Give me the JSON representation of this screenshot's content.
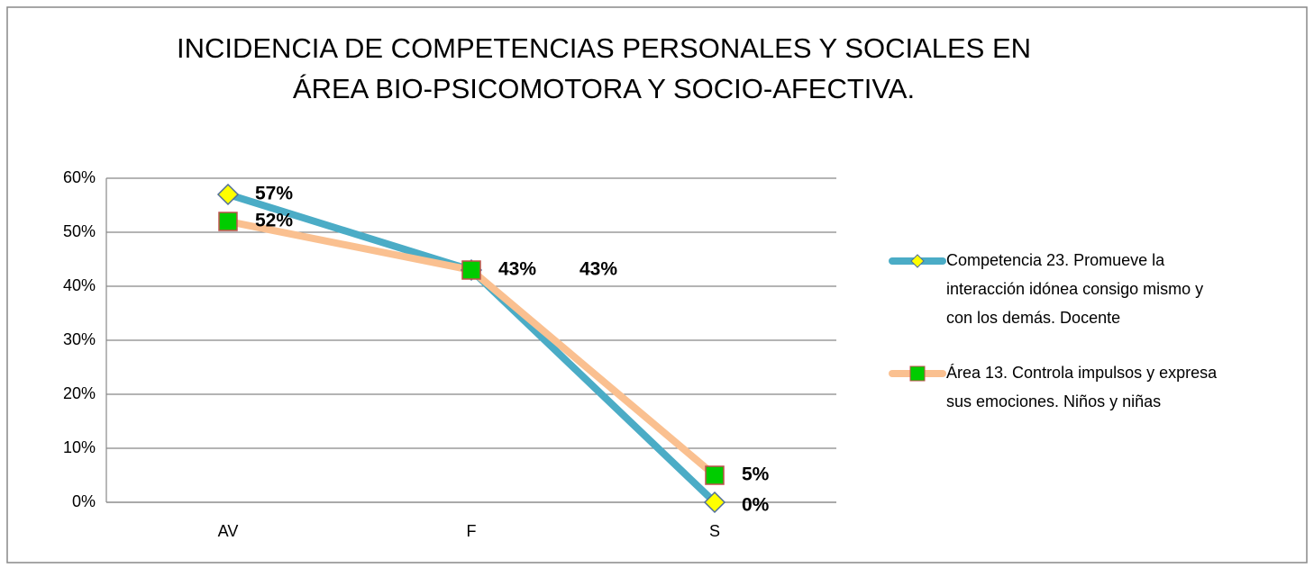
{
  "chart_data": {
    "type": "line",
    "title": [
      "INCIDENCIA DE COMPETENCIAS PERSONALES Y SOCIALES EN",
      "ÁREA BIO-PSICOMOTORA Y SOCIO-AFECTIVA."
    ],
    "categories": [
      "AV",
      "F",
      "S"
    ],
    "series": [
      {
        "name": "Competencia 23. Promueve la interacción idónea consigo mismo y con los demás. Docente",
        "color": "#4bacc6",
        "marker": "diamond",
        "marker_color": "#ffff00",
        "values": [
          57,
          43,
          0
        ],
        "value_labels": [
          "57%",
          "43%",
          "0%"
        ]
      },
      {
        "name": "Área 13. Controla impulsos y expresa sus emociones. Niños y niñas",
        "color": "#fac090",
        "marker": "square",
        "marker_color": "#00cc00",
        "values": [
          52,
          43,
          5
        ],
        "value_labels": [
          "52%",
          "43%",
          "5%"
        ]
      }
    ],
    "ylim": [
      0,
      60
    ],
    "yticks": [
      {
        "value": 0,
        "label": "0%"
      },
      {
        "value": 10,
        "label": "10%"
      },
      {
        "value": 20,
        "label": "20%"
      },
      {
        "value": 30,
        "label": "30%"
      },
      {
        "value": 40,
        "label": "40%"
      },
      {
        "value": 50,
        "label": "50%"
      },
      {
        "value": 60,
        "label": "60%"
      }
    ],
    "grid": true,
    "legend": "right"
  }
}
